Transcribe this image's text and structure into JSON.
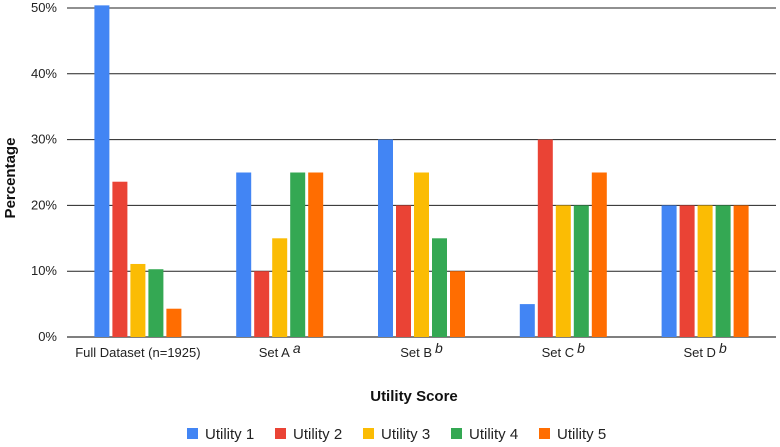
{
  "chart_data": {
    "type": "bar",
    "xlabel": "Utility Score",
    "ylabel": "Percentage",
    "ylim": [
      0,
      50
    ],
    "yticks": [
      "0%",
      "10%",
      "20%",
      "30%",
      "40%",
      "50%"
    ],
    "grid": "horizontal",
    "legend_position": "bottom",
    "categories": [
      {
        "label": "Full Dataset (n=1925)",
        "sup": ""
      },
      {
        "label": "Set A",
        "sup": "a"
      },
      {
        "label": "Set B",
        "sup": "b"
      },
      {
        "label": "Set C",
        "sup": "b"
      },
      {
        "label": "Set D",
        "sup": "b"
      }
    ],
    "series": [
      {
        "name": "Utility 1",
        "color": "#4285F4",
        "values": [
          50.4,
          25,
          30,
          5,
          20
        ]
      },
      {
        "name": "Utility 2",
        "color": "#EA4335",
        "values": [
          23.6,
          10,
          20,
          30,
          20
        ]
      },
      {
        "name": "Utility 3",
        "color": "#FBBC04",
        "values": [
          11.1,
          15,
          25,
          20,
          20
        ]
      },
      {
        "name": "Utility 4",
        "color": "#34A853",
        "values": [
          10.3,
          25,
          15,
          20,
          20
        ]
      },
      {
        "name": "Utility 5",
        "color": "#FF6D01",
        "values": [
          4.3,
          25,
          10,
          25,
          20
        ]
      }
    ]
  }
}
